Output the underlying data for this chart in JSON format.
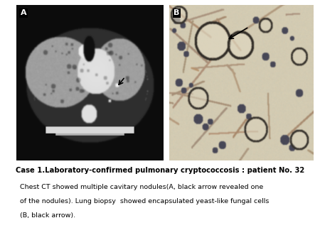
{
  "background_color": "#ffffff",
  "fig_width": 4.5,
  "fig_height": 3.38,
  "dpi": 100,
  "label_A": "A",
  "label_B": "B",
  "title_text": "Case 1.Laboratory-confirmed pulmonary cryptococcosis : patient No. 32",
  "body_line1": "  Chest CT showed multiple cavitary nodules(A, black arrow revealed one",
  "body_line2": "  of the nodules). Lung biopsy  showed encapsulated yeast-like fungal cells",
  "body_line3": "  (B, black arrow).",
  "title_fontsize": 7.2,
  "body_fontsize": 6.8,
  "label_fontsize": 8,
  "ct_bg": 0.05,
  "ct_body": 0.18,
  "ct_lung": 0.62,
  "ct_heart": 0.88,
  "mic_bg_r": 0.82,
  "mic_bg_g": 0.86,
  "mic_bg_b": 0.64
}
